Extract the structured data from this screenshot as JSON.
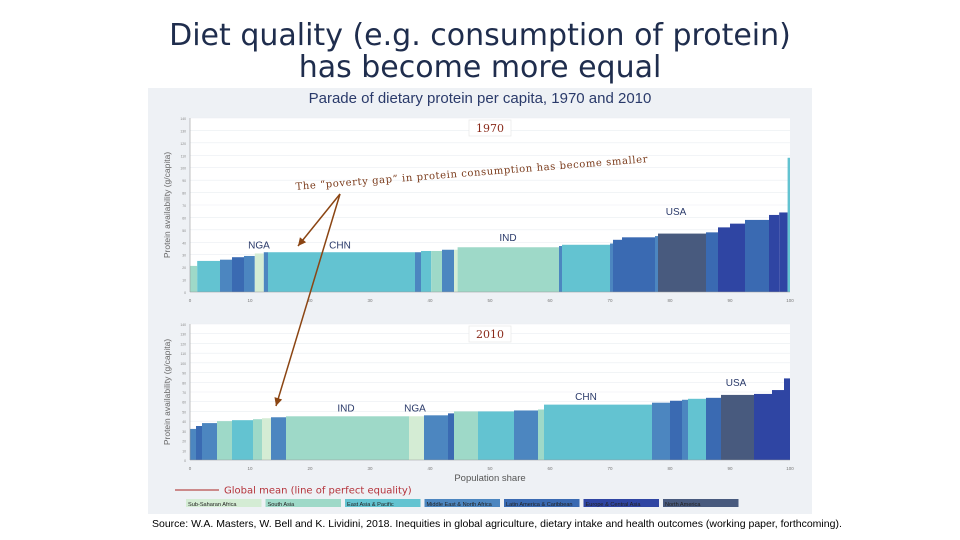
{
  "slide": {
    "title_line1": "Diet quality (e.g. consumption of protein)",
    "title_line2": "has become more equal",
    "source": "Source: W.A. Masters, W. Bell and K. Lividini, 2018. Inequities in global agriculture, dietary intake and health outcomes (working paper, forthcoming)."
  },
  "colors": {
    "Sub-Saharan Africa": "#d4ecd4",
    "South Asia": "#9ed9c8",
    "East Asia & Pacific": "#63c3d1",
    "Middle East & North Africa": "#4c86c0",
    "Latin America & Caribbean": "#3a6ab2",
    "Europe & Central Asia": "#2f45a3",
    "North America": "#485a7e"
  },
  "chart_data": {
    "type": "bar",
    "title": "Parade of dietary protein per capita, 1970 and 2010",
    "xlabel": "Population share",
    "ylabel": "Protein availability (g/capita)",
    "xlim": [
      0,
      100
    ],
    "x_ticks": [
      "0",
      "10",
      "20",
      "30",
      "40",
      "50",
      "60",
      "70",
      "80",
      "90",
      "100"
    ],
    "annotation": "The “poverty gap” in protein consumption has become smaller",
    "mean_line_label": "Global mean (line of perfect equality)",
    "legend": [
      "Sub-Saharan Africa",
      "South Asia",
      "East Asia & Pacific",
      "Middle East & North Africa",
      "Latin America & Caribbean",
      "Europe & Central Asia",
      "North America"
    ],
    "panels": [
      {
        "label": "1970",
        "ylim": [
          0,
          140
        ],
        "y_ticks": [
          "0",
          "10",
          "20",
          "30",
          "40",
          "50",
          "60",
          "70",
          "80",
          "90",
          "100",
          "110",
          "120",
          "130",
          "140"
        ],
        "country_labels": [
          {
            "text": "NGA",
            "x": 11.5,
            "y": 35
          },
          {
            "text": "CHN",
            "x": 25,
            "y": 35
          },
          {
            "text": "IND",
            "x": 53,
            "y": 41
          },
          {
            "text": "USA",
            "x": 81,
            "y": 62
          }
        ],
        "segments": [
          {
            "x0": 0,
            "x1": 1.2,
            "y": 21,
            "region": "South Asia"
          },
          {
            "x0": 1.2,
            "x1": 5,
            "y": 25,
            "region": "East Asia & Pacific"
          },
          {
            "x0": 5,
            "x1": 7,
            "y": 26,
            "region": "Middle East & North Africa"
          },
          {
            "x0": 7,
            "x1": 9,
            "y": 28,
            "region": "Latin America & Caribbean"
          },
          {
            "x0": 9,
            "x1": 10.8,
            "y": 29,
            "region": "Middle East & North Africa"
          },
          {
            "x0": 10.8,
            "x1": 12.3,
            "y": 31,
            "region": "Sub-Saharan Africa"
          },
          {
            "x0": 12.3,
            "x1": 13,
            "y": 32,
            "region": "Middle East & North Africa"
          },
          {
            "x0": 13,
            "x1": 37.5,
            "y": 32,
            "region": "East Asia & Pacific"
          },
          {
            "x0": 37.5,
            "x1": 38.5,
            "y": 32,
            "region": "Middle East & North Africa"
          },
          {
            "x0": 38.5,
            "x1": 40.2,
            "y": 33,
            "region": "East Asia & Pacific"
          },
          {
            "x0": 40.2,
            "x1": 42,
            "y": 33,
            "region": "South Asia"
          },
          {
            "x0": 42,
            "x1": 44,
            "y": 34,
            "region": "Middle East & North Africa"
          },
          {
            "x0": 44,
            "x1": 44.6,
            "y": 34,
            "region": "Sub-Saharan Africa"
          },
          {
            "x0": 44.6,
            "x1": 61.5,
            "y": 36,
            "region": "South Asia"
          },
          {
            "x0": 61.5,
            "x1": 62,
            "y": 37,
            "region": "Middle East & North Africa"
          },
          {
            "x0": 62,
            "x1": 67,
            "y": 38,
            "region": "East Asia & Pacific"
          },
          {
            "x0": 67,
            "x1": 70,
            "y": 38,
            "region": "East Asia & Pacific"
          },
          {
            "x0": 70,
            "x1": 70.5,
            "y": 39,
            "region": "Middle East & North Africa"
          },
          {
            "x0": 70.5,
            "x1": 72,
            "y": 42,
            "region": "Latin America & Caribbean"
          },
          {
            "x0": 72,
            "x1": 77.5,
            "y": 44,
            "region": "Latin America & Caribbean"
          },
          {
            "x0": 77.5,
            "x1": 78,
            "y": 45,
            "region": "Middle East & North Africa"
          },
          {
            "x0": 78,
            "x1": 86,
            "y": 47,
            "region": "North America"
          },
          {
            "x0": 86,
            "x1": 88,
            "y": 48,
            "region": "Latin America & Caribbean"
          },
          {
            "x0": 88,
            "x1": 90,
            "y": 52,
            "region": "Europe & Central Asia"
          },
          {
            "x0": 90,
            "x1": 92.5,
            "y": 55,
            "region": "Europe & Central Asia"
          },
          {
            "x0": 92.5,
            "x1": 96.5,
            "y": 58,
            "region": "Latin America & Caribbean"
          },
          {
            "x0": 96.5,
            "x1": 98.2,
            "y": 62,
            "region": "Europe & Central Asia"
          },
          {
            "x0": 98.2,
            "x1": 99.6,
            "y": 64,
            "region": "Europe & Central Asia"
          },
          {
            "x0": 99.6,
            "x1": 100,
            "y": 108,
            "region": "East Asia & Pacific"
          }
        ]
      },
      {
        "label": "2010",
        "ylim": [
          0,
          140
        ],
        "y_ticks": [
          "0",
          "10",
          "20",
          "30",
          "40",
          "50",
          "60",
          "70",
          "80",
          "90",
          "100",
          "110",
          "120",
          "130",
          "140"
        ],
        "country_labels": [
          {
            "text": "IND",
            "x": 26,
            "y": 50
          },
          {
            "text": "NGA",
            "x": 37.5,
            "y": 50
          },
          {
            "text": "CHN",
            "x": 66,
            "y": 62
          },
          {
            "text": "USA",
            "x": 91,
            "y": 76
          }
        ],
        "segments": [
          {
            "x0": 0,
            "x1": 1,
            "y": 32,
            "region": "Middle East & North Africa"
          },
          {
            "x0": 1,
            "x1": 2,
            "y": 35,
            "region": "Latin America & Caribbean"
          },
          {
            "x0": 2,
            "x1": 4.5,
            "y": 38,
            "region": "Middle East & North Africa"
          },
          {
            "x0": 4.5,
            "x1": 7,
            "y": 40,
            "region": "South Asia"
          },
          {
            "x0": 7,
            "x1": 10.5,
            "y": 41,
            "region": "East Asia & Pacific"
          },
          {
            "x0": 10.5,
            "x1": 12,
            "y": 42,
            "region": "South Asia"
          },
          {
            "x0": 12,
            "x1": 13.5,
            "y": 43,
            "region": "Sub-Saharan Africa"
          },
          {
            "x0": 13.5,
            "x1": 16,
            "y": 44,
            "region": "Middle East & North Africa"
          },
          {
            "x0": 16,
            "x1": 36.5,
            "y": 45,
            "region": "South Asia"
          },
          {
            "x0": 36.5,
            "x1": 39,
            "y": 45,
            "region": "Sub-Saharan Africa"
          },
          {
            "x0": 39,
            "x1": 43,
            "y": 46,
            "region": "Middle East & North Africa"
          },
          {
            "x0": 43,
            "x1": 44,
            "y": 48,
            "region": "Latin America & Caribbean"
          },
          {
            "x0": 44,
            "x1": 48,
            "y": 50,
            "region": "South Asia"
          },
          {
            "x0": 48,
            "x1": 54,
            "y": 50,
            "region": "East Asia & Pacific"
          },
          {
            "x0": 54,
            "x1": 58,
            "y": 51,
            "region": "Middle East & North Africa"
          },
          {
            "x0": 58,
            "x1": 59,
            "y": 52,
            "region": "South Asia"
          },
          {
            "x0": 59,
            "x1": 77,
            "y": 57,
            "region": "East Asia & Pacific"
          },
          {
            "x0": 77,
            "x1": 80,
            "y": 59,
            "region": "Middle East & North Africa"
          },
          {
            "x0": 80,
            "x1": 82,
            "y": 61,
            "region": "Latin America & Caribbean"
          },
          {
            "x0": 82,
            "x1": 83,
            "y": 62,
            "region": "Middle East & North Africa"
          },
          {
            "x0": 83,
            "x1": 86,
            "y": 63,
            "region": "East Asia & Pacific"
          },
          {
            "x0": 86,
            "x1": 88.5,
            "y": 64,
            "region": "Latin America & Caribbean"
          },
          {
            "x0": 88.5,
            "x1": 94,
            "y": 67,
            "region": "North America"
          },
          {
            "x0": 94,
            "x1": 97,
            "y": 68,
            "region": "Europe & Central Asia"
          },
          {
            "x0": 97,
            "x1": 99,
            "y": 72,
            "region": "Europe & Central Asia"
          },
          {
            "x0": 99,
            "x1": 100,
            "y": 84,
            "region": "Europe & Central Asia"
          }
        ]
      }
    ]
  }
}
